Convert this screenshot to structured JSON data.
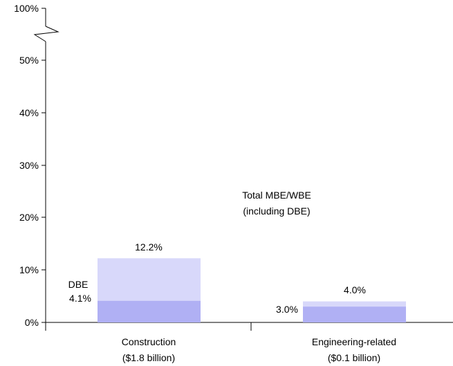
{
  "chart_data": {
    "type": "bar",
    "stacked_overlay": true,
    "axis_break": true,
    "categories": [
      "Construction",
      "Engineering-related"
    ],
    "category_subtitles": [
      "($1.8 billion)",
      "($0.1 billion)"
    ],
    "series": [
      {
        "name": "DBE",
        "values": [
          4.1,
          3.0
        ],
        "color": "#b0b0f4"
      },
      {
        "name": "Total MBE/WBE (including DBE)",
        "values": [
          12.2,
          4.0
        ],
        "color": "#d8d8fa"
      }
    ],
    "data_labels": {
      "total": [
        "12.2%",
        "4.0%"
      ],
      "dbe": [
        "4.1%",
        "3.0%"
      ]
    },
    "yticks": [
      "0%",
      "10%",
      "20%",
      "30%",
      "40%",
      "50%",
      "100%"
    ],
    "ylim": [
      0,
      55
    ],
    "annotations": {
      "dbe_title": "DBE",
      "total_line1": "Total MBE/WBE",
      "total_line2": "(including DBE)"
    },
    "grid": false,
    "legend": "none"
  }
}
